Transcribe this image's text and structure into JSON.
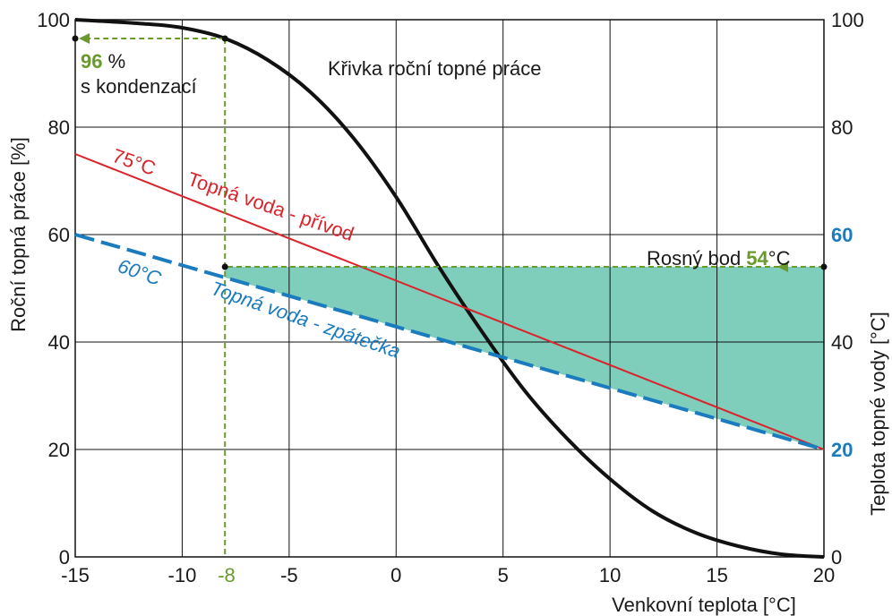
{
  "chart_data": {
    "type": "line",
    "x": {
      "label": "Venkovní teplota [°C]",
      "range": [
        -15,
        20
      ],
      "ticks": [
        -15,
        -10,
        -5,
        0,
        5,
        10,
        15,
        20
      ],
      "tick_labels": [
        "-15",
        "-10",
        "-5",
        "0",
        "5",
        "10",
        "15",
        "20"
      ],
      "grid": true
    },
    "y_left": {
      "label": "Roční topná práce [%]",
      "range": [
        0,
        100
      ],
      "ticks": [
        0,
        20,
        40,
        60,
        80,
        100
      ],
      "tick_labels": [
        "0",
        "20",
        "40",
        "60",
        "80",
        "100"
      ]
    },
    "y_right": {
      "label": "Teplota topné vody [°C]",
      "range": [
        0,
        100
      ],
      "ticks": [
        0,
        20,
        40,
        60,
        80,
        100
      ],
      "tick_labels": [
        "0",
        "20",
        "40",
        "60",
        "80",
        "100"
      ],
      "highlighted_ticks": [
        20,
        60
      ]
    },
    "series": [
      {
        "id": "annual",
        "name": "Křivka roční topné práce",
        "color": "#111111",
        "style": "solid",
        "points": [
          [
            -15,
            100
          ],
          [
            -12,
            99.3
          ],
          [
            -10,
            98.5
          ],
          [
            -8,
            96.5
          ],
          [
            -6,
            92.5
          ],
          [
            -4,
            86.5
          ],
          [
            -2,
            78
          ],
          [
            0,
            67
          ],
          [
            2,
            54
          ],
          [
            4,
            42
          ],
          [
            6,
            31
          ],
          [
            8,
            22
          ],
          [
            10,
            14.5
          ],
          [
            12,
            8.5
          ],
          [
            14,
            4.5
          ],
          [
            16,
            2
          ],
          [
            18,
            0.5
          ],
          [
            20,
            0
          ]
        ]
      },
      {
        "id": "supply",
        "name": "Topná voda - přívod",
        "color": "#d9242b",
        "style": "solid",
        "points": [
          [
            -15,
            75
          ],
          [
            20,
            20
          ]
        ]
      },
      {
        "id": "return",
        "name": "Topná voda - zpátečka",
        "color": "#1b7bbf",
        "style": "dashed",
        "points": [
          [
            -15,
            60
          ],
          [
            20,
            20
          ]
        ]
      }
    ],
    "condensation_area": {
      "color": "#7fcdbb",
      "dew_point": 54,
      "from_x": -8,
      "to_x": 20
    },
    "annotations": {
      "annual_curve": "Křivka roční topné práce",
      "supply_temp": "75°C",
      "supply_name": "Topná voda - přívod",
      "return_temp": "60°C",
      "return_name": "Topná voda - zpátečka",
      "dew_prefix": "Rosný bod ",
      "dew_value": "54",
      "dew_unit": "°C",
      "cond_value": "96",
      "cond_unit": " %",
      "cond_text": "s kondenzací",
      "design_temp": "-8",
      "design_point": [
        -8,
        96.5
      ]
    },
    "colors": {
      "green_guides": "#6a9a2e",
      "blue_labels": "#1b7bbf",
      "grid": "#111111"
    }
  }
}
